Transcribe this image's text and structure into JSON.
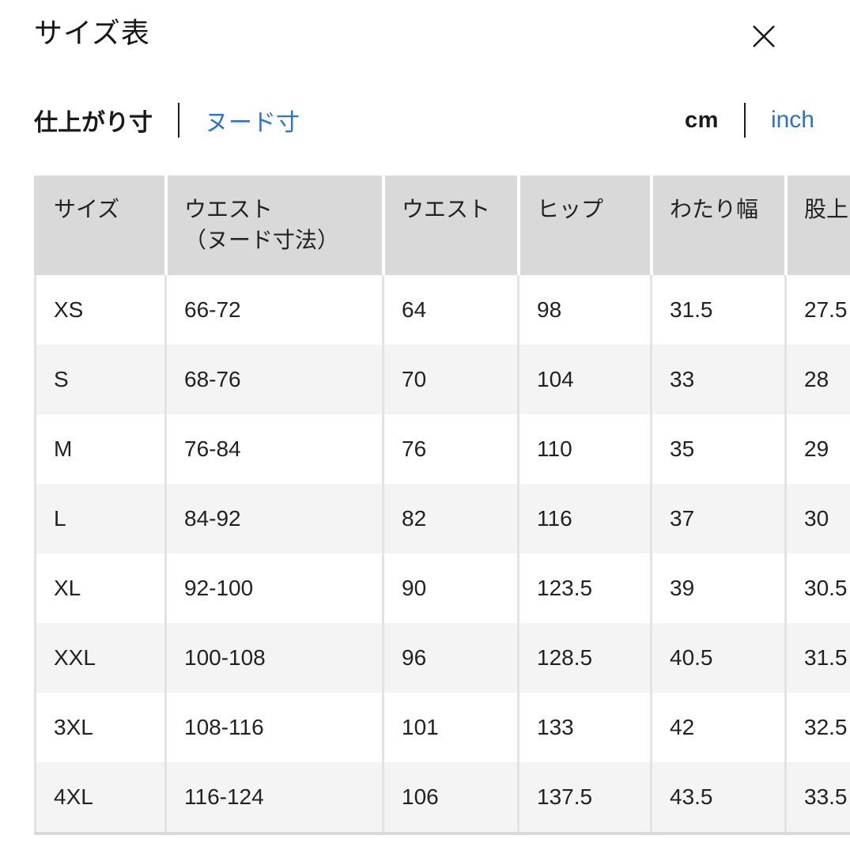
{
  "modal": {
    "title": "サイズ表"
  },
  "controls": {
    "measurement_toggle": {
      "selected": "仕上がり寸",
      "link": "ヌード寸"
    },
    "unit_toggle": {
      "selected": "cm",
      "link": "inch"
    }
  },
  "table": {
    "columns": [
      {
        "label": "サイズ",
        "sub": ""
      },
      {
        "label": "ウエスト",
        "sub": "（ヌード寸法）"
      },
      {
        "label": "ウエスト",
        "sub": ""
      },
      {
        "label": "ヒップ",
        "sub": ""
      },
      {
        "label": "わたり幅",
        "sub": ""
      },
      {
        "label": "股上",
        "sub": ""
      }
    ],
    "rows": [
      {
        "size": "XS",
        "values": [
          "66-72",
          "64",
          "98",
          "31.5",
          "27.5"
        ]
      },
      {
        "size": "S",
        "values": [
          "68-76",
          "70",
          "104",
          "33",
          "28"
        ]
      },
      {
        "size": "M",
        "values": [
          "76-84",
          "76",
          "110",
          "35",
          "29"
        ]
      },
      {
        "size": "L",
        "values": [
          "84-92",
          "82",
          "116",
          "37",
          "30"
        ]
      },
      {
        "size": "XL",
        "values": [
          "92-100",
          "90",
          "123.5",
          "39",
          "30.5"
        ]
      },
      {
        "size": "XXL",
        "values": [
          "100-108",
          "96",
          "128.5",
          "40.5",
          "31.5"
        ]
      },
      {
        "size": "3XL",
        "values": [
          "108-116",
          "101",
          "133",
          "42",
          "32.5"
        ]
      },
      {
        "size": "4XL",
        "values": [
          "116-124",
          "106",
          "137.5",
          "43.5",
          "33.5"
        ]
      }
    ]
  },
  "colors": {
    "link_blue": "#2b73cd",
    "header_bg": "#d9d9d9",
    "row_alt_bg": "#f4f4f4",
    "separator": "#e3e3e3",
    "text": "#1d1d1d"
  }
}
